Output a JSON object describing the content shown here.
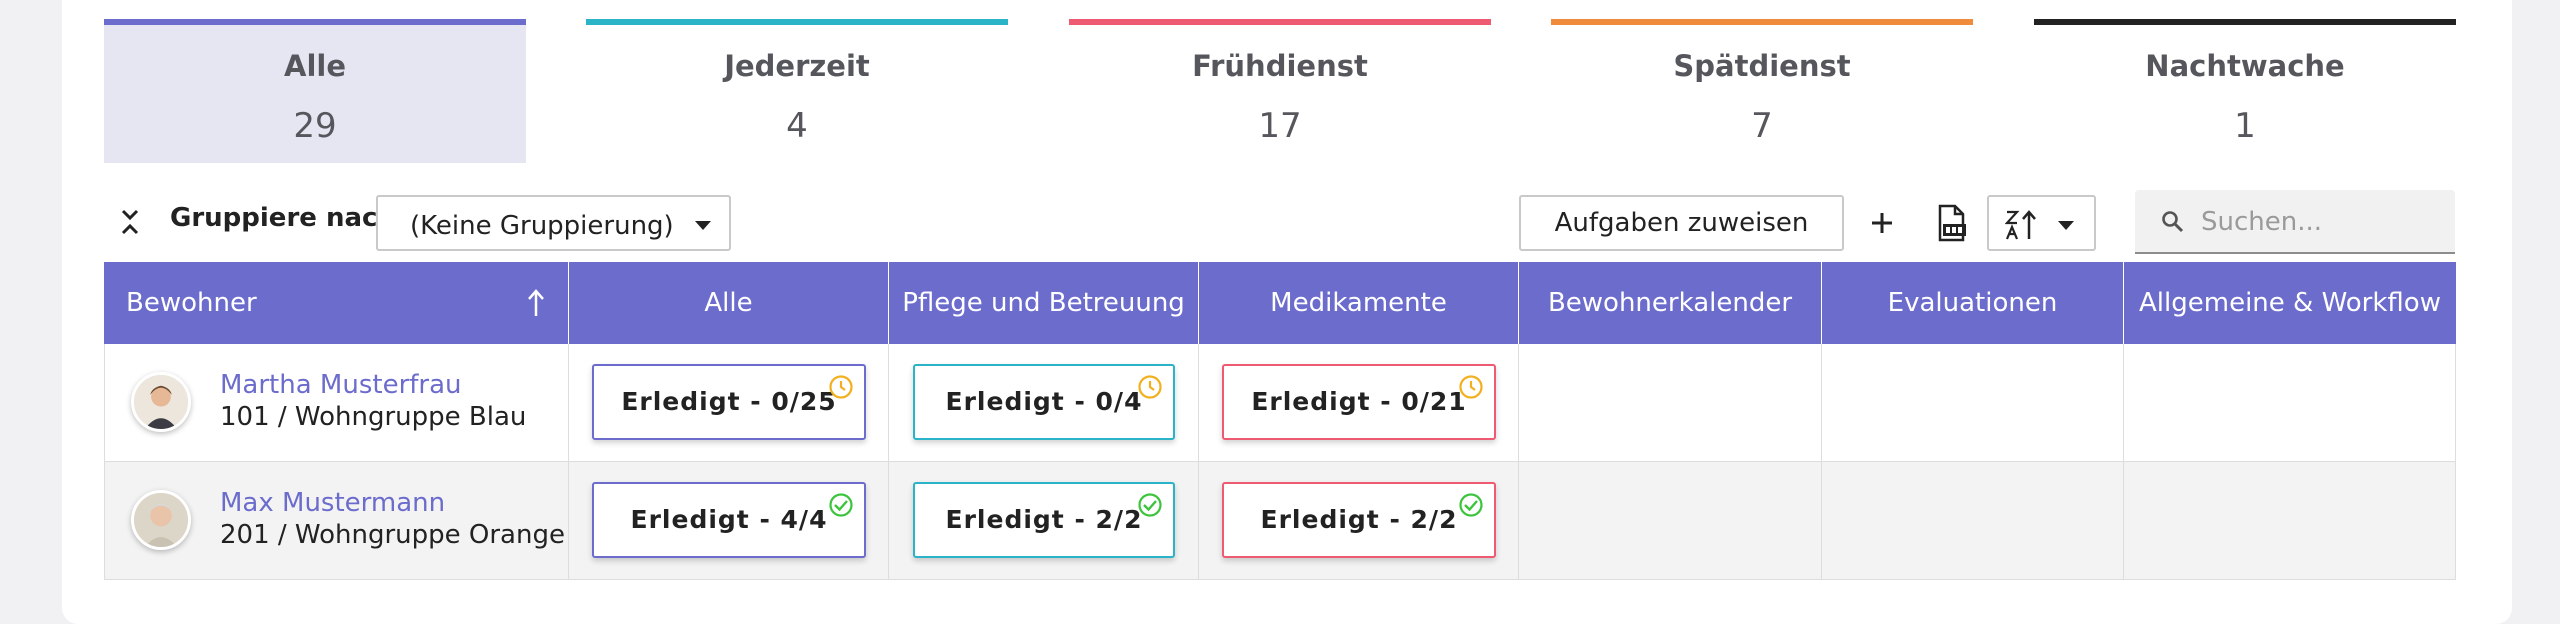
{
  "tabs": [
    {
      "label": "Alle",
      "count": "29",
      "color": "#6c6ccd",
      "active": true
    },
    {
      "label": "Jederzeit",
      "count": "4",
      "color": "#2bb3c8",
      "active": false
    },
    {
      "label": "Frühdienst",
      "count": "17",
      "color": "#ee5a72",
      "active": false
    },
    {
      "label": "Spätdienst",
      "count": "7",
      "color": "#f08a3c",
      "active": false
    },
    {
      "label": "Nachtwache",
      "count": "1",
      "color": "#222222",
      "active": false
    }
  ],
  "toolbar": {
    "group_label": "Gruppiere nach:",
    "group_value": "(Keine Gruppierung)",
    "assign_label": "Aufgaben zuweisen",
    "search_placeholder": "Suchen..."
  },
  "table": {
    "columns": [
      "Bewohner",
      "Alle",
      "Pflege und Betreuung",
      "Medikamente",
      "Bewohnerkalender",
      "Evaluationen",
      "Allgemeine & Workflow"
    ],
    "rows": [
      {
        "name": "Martha Musterfrau",
        "location": "101 / Wohngruppe Blau",
        "alle": "Erledigt - 0/25",
        "pflege": "Erledigt - 0/4",
        "medikamente": "Erledigt - 0/21",
        "state": "pending"
      },
      {
        "name": "Max Mustermann",
        "location": "201 / Wohngruppe Orange",
        "alle": "Erledigt - 4/4",
        "pflege": "Erledigt - 2/2",
        "medikamente": "Erledigt - 2/2",
        "state": "done"
      }
    ]
  },
  "colors": {
    "accent": "#6c6ccd",
    "teal": "#2bb3c8",
    "red": "#ee5a72",
    "pending": "#f2b01e",
    "done": "#3cc43c"
  }
}
